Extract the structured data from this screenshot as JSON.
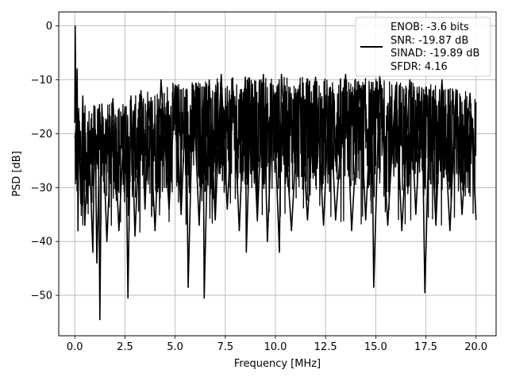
{
  "chart_data": {
    "type": "line",
    "title": "",
    "xlabel": "Frequency [MHz]",
    "ylabel": "PSD [dB]",
    "xlim": [
      -0.8,
      21.0
    ],
    "ylim": [
      -57.5,
      2.6
    ],
    "x_ticks": [
      0.0,
      2.5,
      5.0,
      7.5,
      10.0,
      12.5,
      15.0,
      17.5,
      20.0
    ],
    "x_tick_labels": [
      "0.0",
      "2.5",
      "5.0",
      "7.5",
      "10.0",
      "12.5",
      "15.0",
      "17.5",
      "20.0"
    ],
    "y_ticks": [
      0,
      -10,
      -20,
      -30,
      -40,
      -50
    ],
    "y_tick_labels": [
      "0",
      "−10",
      "−20",
      "−30",
      "−40",
      "−50"
    ],
    "grid": true,
    "legend_placement": "top-right",
    "legend_lines": [
      "ENOB: -3.6 bits",
      "SNR: -19.87 dB",
      "SINAD: -19.89 dB",
      "SFDR: 4.16"
    ],
    "series": [
      {
        "color": "#000000",
        "x_start": 0.0,
        "x_end": 20.0,
        "points": [
          [
            0.0,
            -18.0
          ],
          [
            0.02,
            0.0
          ],
          [
            0.05,
            -12.0
          ],
          [
            0.08,
            -20.0
          ],
          [
            0.12,
            -8.0
          ],
          [
            0.16,
            -38.0
          ],
          [
            0.2,
            -17.0
          ],
          [
            0.3,
            -33.0
          ],
          [
            0.4,
            -13.0
          ],
          [
            0.5,
            -37.0
          ],
          [
            0.7,
            -20.0
          ],
          [
            0.9,
            -42.0
          ],
          [
            1.0,
            -15.0
          ],
          [
            1.1,
            -44.0
          ],
          [
            1.2,
            -28.0
          ],
          [
            1.25,
            -54.5
          ],
          [
            1.35,
            -14.5
          ],
          [
            1.6,
            -40.0
          ],
          [
            1.9,
            -13.5
          ],
          [
            2.2,
            -38.0
          ],
          [
            2.5,
            -15.0
          ],
          [
            2.6,
            -36.0
          ],
          [
            2.65,
            -50.5
          ],
          [
            2.8,
            -13.0
          ],
          [
            3.0,
            -39.0
          ],
          [
            3.3,
            -12.0
          ],
          [
            3.5,
            -34.0
          ],
          [
            3.7,
            -14.0
          ],
          [
            4.0,
            -38.0
          ],
          [
            4.3,
            -10.0
          ],
          [
            4.7,
            -34.0
          ],
          [
            5.0,
            -11.0
          ],
          [
            5.3,
            -35.0
          ],
          [
            5.55,
            -12.5
          ],
          [
            5.65,
            -48.5
          ],
          [
            5.9,
            -11.0
          ],
          [
            6.2,
            -37.0
          ],
          [
            6.4,
            -14.0
          ],
          [
            6.45,
            -50.5
          ],
          [
            6.7,
            -10.0
          ],
          [
            7.0,
            -36.0
          ],
          [
            7.3,
            -9.0
          ],
          [
            7.6,
            -34.0
          ],
          [
            7.9,
            -12.0
          ],
          [
            8.2,
            -38.0
          ],
          [
            8.5,
            -9.5
          ],
          [
            8.55,
            -42.0
          ],
          [
            8.8,
            -11.0
          ],
          [
            9.1,
            -36.0
          ],
          [
            9.4,
            -9.0
          ],
          [
            9.6,
            -40.0
          ],
          [
            9.9,
            -12.0
          ],
          [
            10.2,
            -42.0
          ],
          [
            10.3,
            -9.0
          ],
          [
            10.8,
            -38.0
          ],
          [
            11.2,
            -11.0
          ],
          [
            11.6,
            -36.0
          ],
          [
            12.0,
            -9.5
          ],
          [
            12.4,
            -37.0
          ],
          [
            12.7,
            -11.5
          ],
          [
            13.0,
            -36.0
          ],
          [
            13.5,
            -9.0
          ],
          [
            13.8,
            -38.0
          ],
          [
            14.2,
            -11.0
          ],
          [
            14.5,
            -36.0
          ],
          [
            14.8,
            -12.0
          ],
          [
            14.9,
            -48.5
          ],
          [
            15.2,
            -9.0
          ],
          [
            15.6,
            -37.0
          ],
          [
            16.0,
            -11.0
          ],
          [
            16.3,
            -38.0
          ],
          [
            16.7,
            -10.0
          ],
          [
            17.0,
            -35.0
          ],
          [
            17.3,
            -11.5
          ],
          [
            17.45,
            -49.5
          ],
          [
            17.7,
            -13.0
          ],
          [
            18.0,
            -37.0
          ],
          [
            18.3,
            -10.0
          ],
          [
            18.7,
            -38.0
          ],
          [
            19.0,
            -12.0
          ],
          [
            19.3,
            -35.0
          ],
          [
            19.7,
            -12.5
          ],
          [
            20.0,
            -36.0
          ]
        ],
        "noise_band": {
          "description_values_in_dB": true,
          "envelope": [
            [
              0.0,
              -15.0,
              -34.0
            ],
            [
              1.0,
              -14.5,
              -33.0
            ],
            [
              2.5,
              -14.0,
              -33.0
            ],
            [
              4.0,
              -11.0,
              -32.0
            ],
            [
              6.0,
              -10.0,
              -31.0
            ],
            [
              8.0,
              -9.5,
              -31.0
            ],
            [
              10.0,
              -9.5,
              -31.0
            ],
            [
              12.0,
              -9.5,
              -31.0
            ],
            [
              14.0,
              -9.5,
              -31.0
            ],
            [
              16.0,
              -10.0,
              -31.0
            ],
            [
              18.0,
              -11.0,
              -32.0
            ],
            [
              20.0,
              -12.5,
              -33.0
            ]
          ]
        }
      }
    ]
  }
}
